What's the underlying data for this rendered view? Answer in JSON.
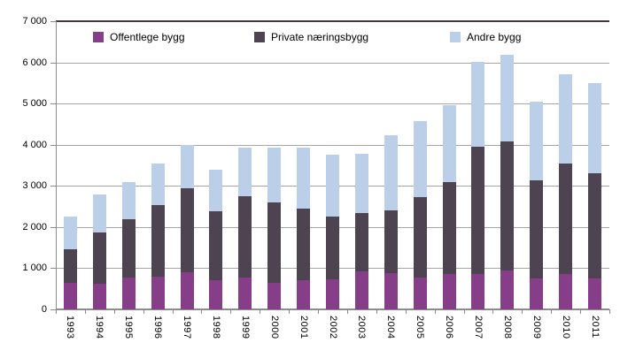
{
  "chart_data": {
    "type": "bar",
    "stacked": true,
    "title": "",
    "xlabel": "",
    "ylabel": "",
    "ylim": [
      0,
      7000
    ],
    "y_tick_step": 1000,
    "y_tick_labels": [
      "0",
      "1 000",
      "2 000",
      "3 000",
      "4 000",
      "5 000",
      "6 000",
      "7 000"
    ],
    "grid": true,
    "legend_position": "top",
    "categories": [
      "1993",
      "1994",
      "1995",
      "1996",
      "1997",
      "1998",
      "1999",
      "2000",
      "2001",
      "2002",
      "2003",
      "2004",
      "2005",
      "2006",
      "2007",
      "2008",
      "2009",
      "2010",
      "2011"
    ],
    "series": [
      {
        "name": "Offentlege bygg",
        "color": "#873e89",
        "values": [
          640,
          620,
          770,
          790,
          900,
          710,
          780,
          640,
          710,
          720,
          920,
          880,
          780,
          860,
          860,
          940,
          750,
          860,
          760
        ]
      },
      {
        "name": "Private næringsbygg",
        "color": "#4d4351",
        "values": [
          810,
          1250,
          1410,
          1740,
          2050,
          1670,
          1970,
          1960,
          1740,
          1530,
          1410,
          1520,
          1950,
          2240,
          3090,
          3130,
          2380,
          2690,
          2540
        ]
      },
      {
        "name": "Andre bygg",
        "color": "#bccfe8",
        "values": [
          800,
          920,
          910,
          1010,
          1050,
          1010,
          1170,
          1330,
          1470,
          1500,
          1450,
          1830,
          1850,
          1870,
          2060,
          2120,
          1910,
          2160,
          2190
        ]
      }
    ],
    "stacked_totals": [
      2250,
      2790,
      3090,
      3540,
      4000,
      3390,
      3920,
      3930,
      3920,
      3750,
      3780,
      4230,
      4580,
      4970,
      6010,
      6190,
      5040,
      5710,
      5490
    ]
  },
  "colors": {
    "background": "#ffffff",
    "gridline": "#a6a6a6",
    "plot_top_border": "#3f3937",
    "axis": "#8c8c8c",
    "text": "#000000"
  }
}
